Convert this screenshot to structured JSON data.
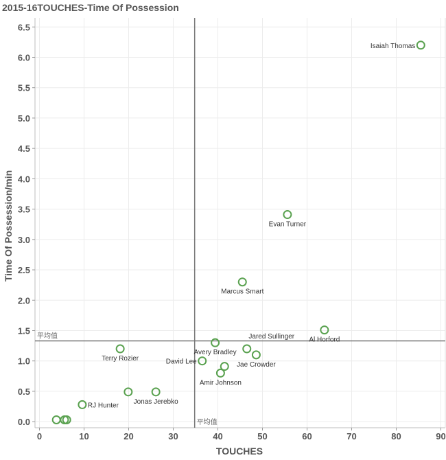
{
  "chart_data": {
    "type": "scatter",
    "title": "2015-16TOUCHES-Time Of Possession",
    "xlabel": "TOUCHES",
    "ylabel": "Time Of Possession/min",
    "xlim": [
      -1,
      91
    ],
    "ylim": [
      -0.1,
      6.65
    ],
    "x_ticks": [
      0,
      10,
      20,
      30,
      40,
      50,
      60,
      70,
      80,
      90
    ],
    "x_tick_labels": [
      "0",
      "10",
      "20",
      "30",
      "40",
      "50",
      "60",
      "70",
      "80",
      "90"
    ],
    "y_ticks": [
      0,
      0.5,
      1,
      1.5,
      2,
      2.5,
      3,
      3.5,
      4,
      4.5,
      5,
      5.5,
      6,
      6.5
    ],
    "y_tick_labels": [
      "0.0",
      "0.5",
      "1.0",
      "1.5",
      "2.0",
      "2.5",
      "3.0",
      "3.5",
      "4.0",
      "4.5",
      "5.0",
      "5.5",
      "6.0",
      "6.5"
    ],
    "grid": true,
    "marker_color": "#59a14f",
    "reference_lines": {
      "x_average": 34.8,
      "y_average": 1.33,
      "label": "平均值",
      "color": "#777777"
    },
    "points": [
      {
        "name": "Isaiah Thomas",
        "x": 85.5,
        "y": 6.2,
        "label_pos": "left"
      },
      {
        "name": "Evan Turner",
        "x": 55.6,
        "y": 3.41,
        "label_pos": "below"
      },
      {
        "name": "Marcus Smart",
        "x": 45.5,
        "y": 2.3,
        "label_pos": "below"
      },
      {
        "name": "Al Horford",
        "x": 63.9,
        "y": 1.51,
        "label_pos": "below"
      },
      {
        "name": "Jared Sullinger",
        "x": 46.5,
        "y": 1.2,
        "label_pos": "above-right"
      },
      {
        "name": "Avery Bradley",
        "x": 39.4,
        "y": 1.3,
        "label_pos": "below"
      },
      {
        "name": "Terry Rozier",
        "x": 18.1,
        "y": 1.2,
        "label_pos": "below"
      },
      {
        "name": "David Lee",
        "x": 36.5,
        "y": 1.0,
        "label_pos": "left"
      },
      {
        "name": "Jae Crowder",
        "x": 48.6,
        "y": 1.1,
        "label_pos": "below"
      },
      {
        "name": "",
        "x": 41.5,
        "y": 0.91,
        "label_pos": "none"
      },
      {
        "name": "Amir Johnson",
        "x": 40.6,
        "y": 0.8,
        "label_pos": "below"
      },
      {
        "name": "Jonas Jerebko",
        "x": 26.1,
        "y": 0.49,
        "label_pos": "below"
      },
      {
        "name": "",
        "x": 19.9,
        "y": 0.49,
        "label_pos": "none"
      },
      {
        "name": "RJ Hunter",
        "x": 9.6,
        "y": 0.28,
        "label_pos": "right"
      },
      {
        "name": "",
        "x": 3.8,
        "y": 0.03,
        "label_pos": "none"
      },
      {
        "name": "",
        "x": 5.6,
        "y": 0.03,
        "label_pos": "none"
      },
      {
        "name": "",
        "x": 6.1,
        "y": 0.03,
        "label_pos": "none"
      }
    ]
  }
}
